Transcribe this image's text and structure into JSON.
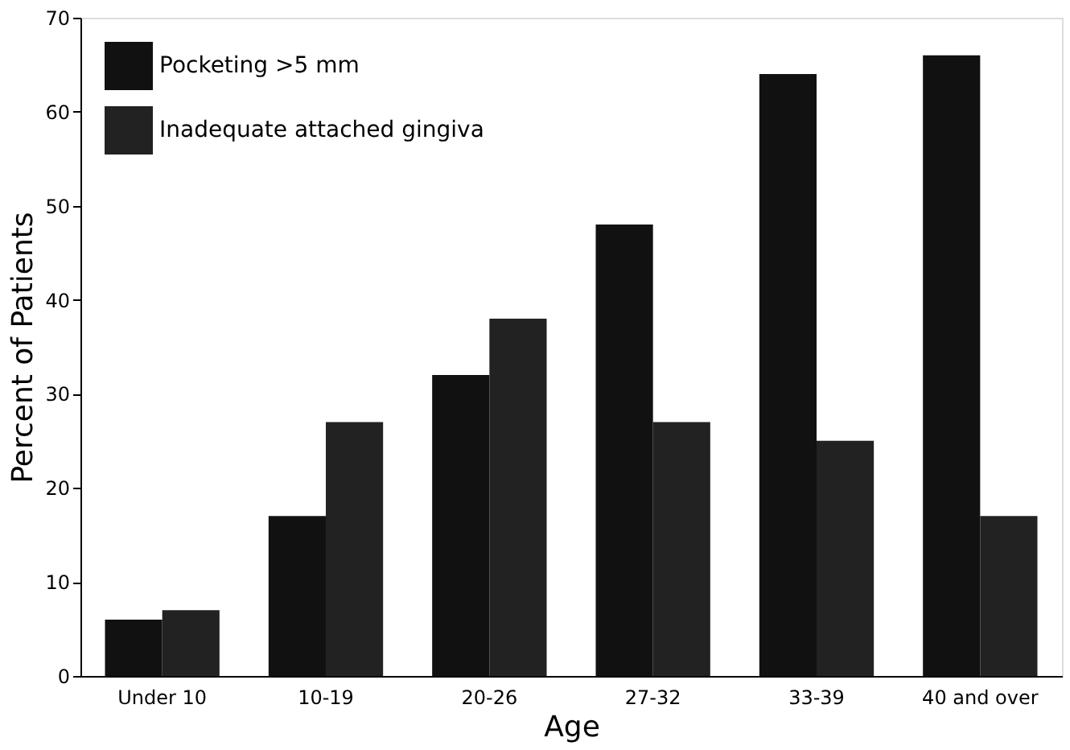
{
  "chart_data": {
    "type": "bar",
    "xlabel": "Age",
    "ylabel": "Percent of Patients",
    "categories": [
      "Under 10",
      "10-19",
      "20-26",
      "27-32",
      "33-39",
      "40 and over"
    ],
    "series": [
      {
        "name": "Pocketing >5 mm",
        "color": "#111111",
        "values": [
          6,
          17,
          32,
          48,
          64,
          66
        ]
      },
      {
        "name": "Inadequate attached gingiva",
        "color": "#222222",
        "values": [
          7,
          27,
          38,
          27,
          25,
          17
        ]
      }
    ],
    "ylim": [
      0,
      70
    ],
    "yticks": [
      0,
      10,
      20,
      30,
      40,
      50,
      60,
      70
    ],
    "grid": false,
    "legend": "top left"
  }
}
